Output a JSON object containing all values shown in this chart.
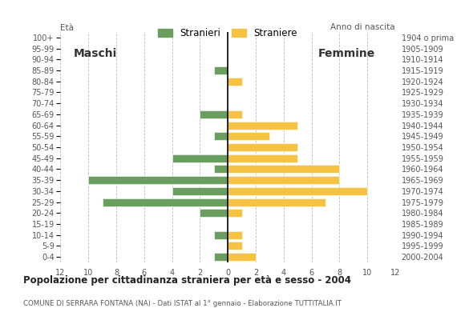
{
  "age_groups": [
    "100+",
    "95-99",
    "90-94",
    "85-89",
    "80-84",
    "75-79",
    "70-74",
    "65-69",
    "60-64",
    "55-59",
    "50-54",
    "45-49",
    "40-44",
    "35-39",
    "30-34",
    "25-29",
    "20-24",
    "15-19",
    "10-14",
    "5-9",
    "0-4"
  ],
  "birth_years": [
    "1904 o prima",
    "1905-1909",
    "1910-1914",
    "1915-1919",
    "1920-1924",
    "1925-1929",
    "1930-1934",
    "1935-1939",
    "1940-1944",
    "1945-1949",
    "1950-1954",
    "1955-1959",
    "1960-1964",
    "1965-1969",
    "1970-1974",
    "1975-1979",
    "1980-1984",
    "1985-1989",
    "1990-1994",
    "1995-1999",
    "2000-2004"
  ],
  "maschi": [
    0,
    0,
    0,
    1,
    0,
    0,
    0,
    2,
    0,
    1,
    0,
    4,
    1,
    10,
    4,
    9,
    2,
    0,
    1,
    0,
    1
  ],
  "femmine": [
    0,
    0,
    0,
    0,
    1,
    0,
    0,
    1,
    5,
    3,
    5,
    5,
    8,
    8,
    10,
    7,
    1,
    0,
    1,
    1,
    2
  ],
  "male_color": "#6a9e5e",
  "female_color": "#f5c242",
  "grid_color": "#aaaaaa",
  "title": "Popolazione per cittadinanza straniera per età e sesso - 2004",
  "subtitle": "COMUNE DI SERRARA FONTANA (NA) - Dati ISTAT al 1° gennaio - Elaborazione TUTTITALIA.IT",
  "legend_male": "Stranieri",
  "legend_female": "Straniere",
  "label_age": "Età",
  "label_birth": "Anno di nascita",
  "label_maschi": "Maschi",
  "label_femmine": "Femmine",
  "xlim": 12,
  "background_color": "#ffffff"
}
